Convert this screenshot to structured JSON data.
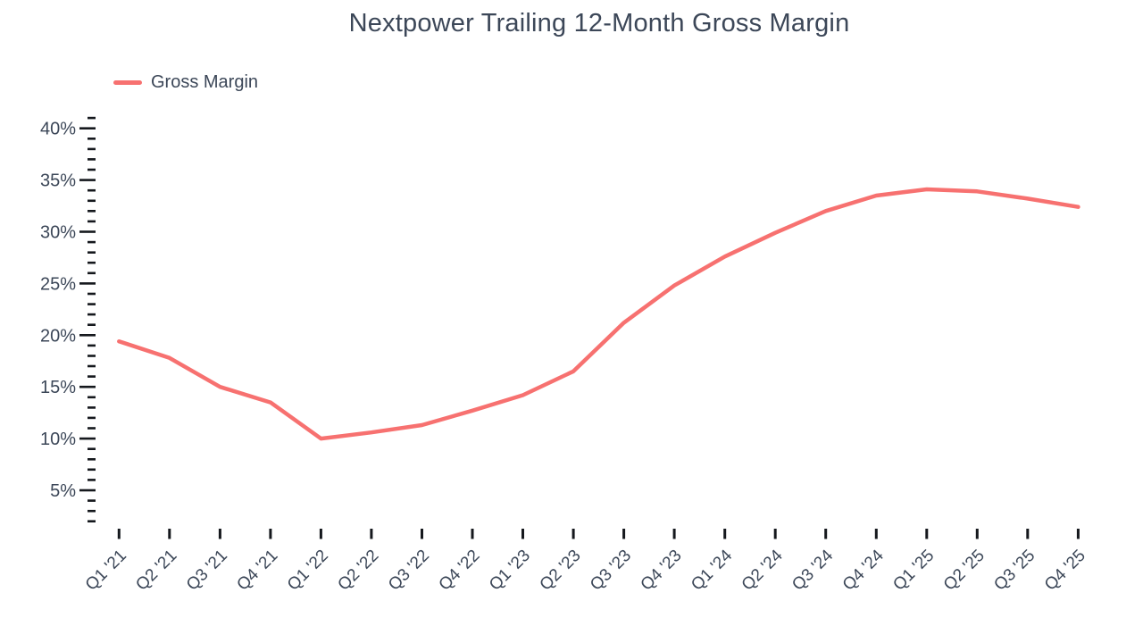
{
  "page": {
    "background": "#ffffff"
  },
  "chart_data": {
    "type": "line",
    "title": "Nextpower Trailing 12-Month Gross Margin",
    "legend": {
      "label": "Gross Margin",
      "position": "top-left"
    },
    "grid": false,
    "colors": {
      "text": "#3c4758",
      "tick": "#15181d",
      "line": "#f77170"
    },
    "categories": [
      "Q1 '21",
      "Q2 '21",
      "Q3 '21",
      "Q4 '21",
      "Q1 '22",
      "Q2 '22",
      "Q3 '22",
      "Q4 '22",
      "Q1 '23",
      "Q2 '23",
      "Q3 '23",
      "Q4 '23",
      "Q1 '24",
      "Q2 '24",
      "Q3 '24",
      "Q4 '24",
      "Q1 '25",
      "Q2 '25",
      "Q3 '25",
      "Q4 '25"
    ],
    "series": [
      {
        "name": "Gross Margin",
        "values": [
          19.4,
          17.8,
          15.0,
          13.5,
          10.0,
          10.6,
          11.3,
          12.7,
          14.2,
          16.5,
          21.2,
          24.8,
          27.6,
          29.9,
          32.0,
          33.5,
          34.1,
          33.9,
          33.2,
          32.4
        ]
      }
    ],
    "xlabel": "",
    "ylabel": "",
    "y_axis": {
      "unit": "%",
      "major_ticks": [
        {
          "value": 40,
          "label": "40%"
        },
        {
          "value": 35,
          "label": "35%"
        },
        {
          "value": 30,
          "label": "30%"
        },
        {
          "value": 25,
          "label": "25%"
        },
        {
          "value": 20,
          "label": "20%"
        },
        {
          "value": 15,
          "label": "15%"
        },
        {
          "value": 10,
          "label": "10%"
        },
        {
          "value": 5,
          "label": "5%"
        }
      ],
      "minor_tick_step": 1,
      "tick_range_shown": [
        2,
        41
      ]
    }
  }
}
